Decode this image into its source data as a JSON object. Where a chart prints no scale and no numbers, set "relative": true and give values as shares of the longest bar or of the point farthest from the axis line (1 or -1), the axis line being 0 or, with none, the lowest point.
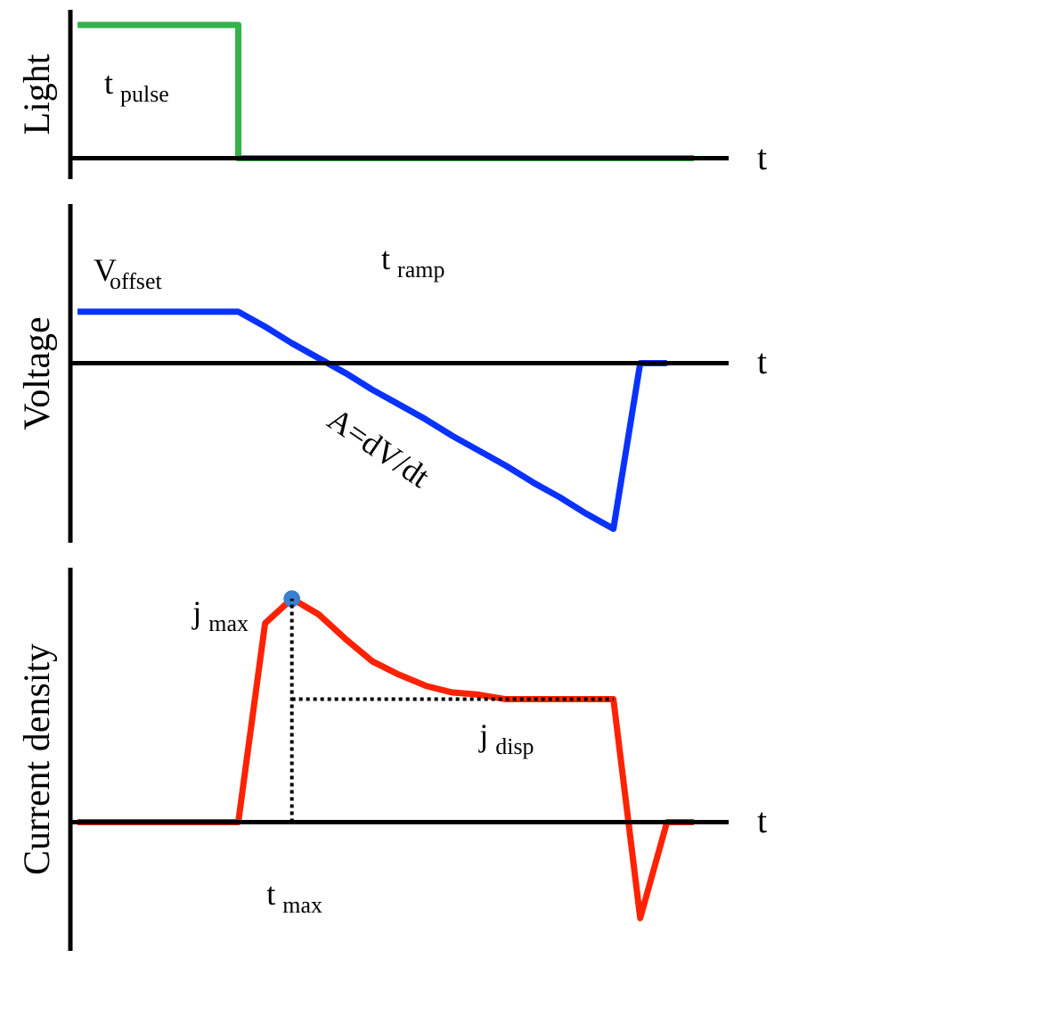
{
  "chart_data": [
    {
      "type": "step",
      "ylabel": "Light",
      "xlabel": "t",
      "relative": true,
      "categories": [
        null,
        null,
        null,
        null,
        null,
        null,
        null,
        null,
        null,
        null,
        null,
        null,
        null,
        null,
        null,
        null,
        null,
        null,
        null,
        null,
        null,
        null,
        null,
        null
      ],
      "series": [
        {
          "color": "#33b34a",
          "values": [
            1,
            1,
            1,
            1,
            1,
            1,
            0,
            0,
            0,
            0,
            0,
            0,
            0,
            0,
            0,
            0,
            0,
            0,
            0,
            0,
            0,
            0,
            0,
            0
          ]
        }
      ],
      "annotations": [
        "t$_{pulse}$"
      ]
    },
    {
      "type": "line",
      "ylabel": "Voltage",
      "xlabel": "t",
      "relative": true,
      "categories": [
        null,
        null,
        null,
        null,
        null,
        null,
        null,
        null,
        null,
        null,
        null,
        null,
        null,
        null,
        null,
        null,
        null,
        null,
        null,
        null,
        null,
        null,
        null,
        null
      ],
      "series": [
        {
          "color": "#0a32ff",
          "values": [
            0.31,
            0.31,
            0.31,
            0.31,
            0.31,
            0.31,
            0.31,
            0.22,
            0.12,
            0.03,
            -0.06,
            -0.16,
            -0.25,
            -0.34,
            -0.44,
            -0.53,
            -0.62,
            -0.72,
            -0.81,
            -0.91,
            -1,
            0,
            0,
            null
          ]
        }
      ],
      "annotations": [
        "V$_{offset}$",
        "t$_{ramp}$",
        "A=dV/dt"
      ]
    },
    {
      "type": "line",
      "ylabel": "Current density",
      "xlabel": "t",
      "relative": true,
      "categories": [
        null,
        null,
        null,
        null,
        null,
        null,
        null,
        null,
        null,
        null,
        null,
        null,
        null,
        null,
        null,
        null,
        null,
        null,
        null,
        null,
        null,
        null,
        null,
        null
      ],
      "series": [
        {
          "color": "#ff2200",
          "values": [
            0,
            0,
            0,
            0,
            0,
            0,
            0,
            0.89,
            1,
            0.93,
            0.82,
            0.72,
            0.66,
            0.61,
            0.58,
            0.57,
            0.55,
            0.55,
            0.55,
            0.55,
            0.55,
            -0.43,
            0,
            0
          ]
        },
        {
          "type": "scatter",
          "marker": "circle",
          "color": "#3a7fd0",
          "values": [
            null,
            null,
            null,
            null,
            null,
            null,
            null,
            null,
            1,
            null,
            null,
            null,
            null,
            null,
            null,
            null,
            null,
            null,
            null,
            null,
            null,
            null,
            null,
            null
          ]
        },
        {
          "type": "line",
          "line_style": "dotted",
          "color": "#000000",
          "values": [
            null,
            null,
            null,
            null,
            null,
            null,
            null,
            null,
            0.55,
            0.55,
            0.55,
            0.55,
            0.55,
            0.55,
            0.55,
            0.55,
            0.55,
            0.55,
            0.55,
            0.55,
            0.55,
            null,
            null,
            null
          ]
        }
      ],
      "annotations": [
        "j$_{max}$",
        "j$_{disp}$",
        "t$_{max}$"
      ]
    }
  ]
}
